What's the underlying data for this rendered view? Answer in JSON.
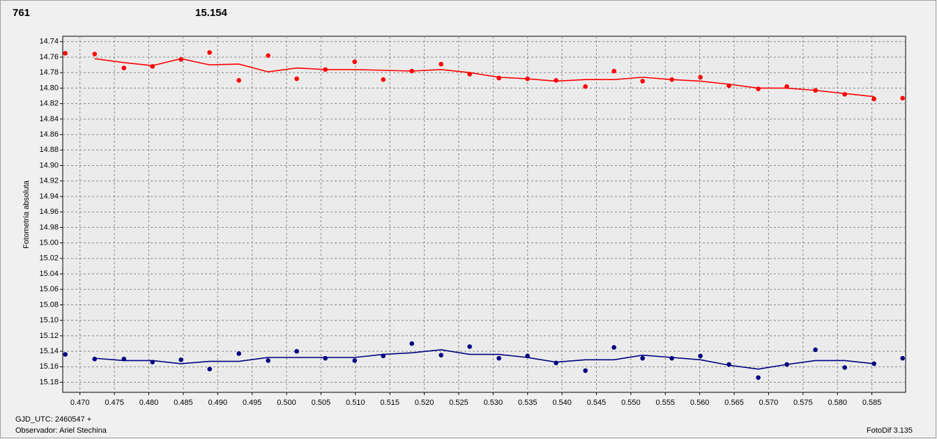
{
  "chart_data": {
    "type": "scatter",
    "header": [
      {
        "text": "761",
        "color": "#ff0000"
      },
      {
        "text": "15.154",
        "color": "#000080"
      }
    ],
    "ylabel": "Fotometría absoluta",
    "footer_left": [
      "GJD_UTC: 2460547 +",
      "Observador: Ariel Stechina"
    ],
    "footer_right": "FotoDif 3.135",
    "xlim": [
      0.4675,
      0.5899
    ],
    "ylim": [
      14.733,
      15.193
    ],
    "y_inverted": true,
    "grid": true,
    "xticks": [
      {
        "value": 0.47,
        "label": "0.470"
      },
      0.475,
      {
        "value": 0.48,
        "label": "0.480"
      },
      0.485,
      {
        "value": 0.49,
        "label": "0.490"
      },
      0.495,
      {
        "value": 0.5,
        "label": "0.500"
      },
      0.505,
      {
        "value": 0.51,
        "label": "0.510"
      },
      0.515,
      {
        "value": 0.52,
        "label": "0.520"
      },
      0.525,
      {
        "value": 0.53,
        "label": "0.530"
      },
      0.535,
      {
        "value": 0.54,
        "label": "0.540"
      },
      0.545,
      {
        "value": 0.55,
        "label": "0.550"
      },
      0.555,
      {
        "value": 0.56,
        "label": "0.560"
      },
      0.565,
      {
        "value": 0.57,
        "label": "0.570"
      },
      0.575,
      {
        "value": 0.58,
        "label": "0.580"
      },
      0.585
    ],
    "yticks": [
      14.74,
      14.76,
      14.78,
      {
        "value": 14.8,
        "label": "14.80"
      },
      14.82,
      14.84,
      14.86,
      14.88,
      {
        "value": 14.9,
        "label": "14.90"
      },
      14.92,
      14.94,
      14.96,
      14.98,
      {
        "value": 15.0,
        "label": "15.00"
      },
      15.02,
      15.04,
      15.06,
      15.08,
      {
        "value": 15.1,
        "label": "15.10"
      },
      15.12,
      15.14,
      15.16,
      15.18
    ],
    "series": [
      {
        "kind": "points",
        "color": "#ff0000",
        "x": [
          0.46787,
          0.47213,
          0.47638,
          0.48053,
          0.48468,
          0.48883,
          0.49308,
          0.49733,
          0.50148,
          0.50563,
          0.50989,
          0.51404,
          0.51819,
          0.52244,
          0.52659,
          0.53084,
          0.53499,
          0.53914,
          0.5434,
          0.54755,
          0.5517,
          0.55595,
          0.5601,
          0.56425,
          0.5685,
          0.57265,
          0.5768,
          0.58106,
          0.58531,
          0.58946
        ],
        "values": [
          14.755,
          14.756,
          14.774,
          14.772,
          14.763,
          14.754,
          14.79,
          14.758,
          14.788,
          14.776,
          14.766,
          14.789,
          14.778,
          14.769,
          14.782,
          14.787,
          14.788,
          14.79,
          14.798,
          14.778,
          14.791,
          14.789,
          14.786,
          14.797,
          14.801,
          14.798,
          14.803,
          14.808,
          14.814,
          14.813
        ]
      },
      {
        "kind": "line",
        "color": "#ff0000",
        "x": [
          0.47213,
          0.47638,
          0.48053,
          0.48468,
          0.48883,
          0.49308,
          0.49733,
          0.50148,
          0.50563,
          0.50989,
          0.51404,
          0.51819,
          0.52244,
          0.52659,
          0.53084,
          0.53499,
          0.53914,
          0.5434,
          0.54755,
          0.5517,
          0.55595,
          0.5601,
          0.56425,
          0.5685,
          0.57265,
          0.5768,
          0.58106,
          0.58531
        ],
        "values": [
          14.762,
          14.767,
          14.771,
          14.762,
          14.77,
          14.769,
          14.779,
          14.774,
          14.776,
          14.776,
          14.777,
          14.778,
          14.776,
          14.78,
          14.786,
          14.788,
          14.791,
          14.789,
          14.789,
          14.786,
          14.789,
          14.791,
          14.795,
          14.8,
          14.8,
          14.803,
          14.807,
          14.811
        ]
      },
      {
        "kind": "points",
        "color": "#000080",
        "x": [
          0.46787,
          0.47213,
          0.47638,
          0.48053,
          0.48468,
          0.48883,
          0.49308,
          0.49733,
          0.50148,
          0.50563,
          0.50989,
          0.51404,
          0.51819,
          0.52244,
          0.52659,
          0.53084,
          0.53499,
          0.53914,
          0.5434,
          0.54755,
          0.5517,
          0.55595,
          0.5601,
          0.56425,
          0.5685,
          0.57265,
          0.5768,
          0.58106,
          0.58531,
          0.58946
        ],
        "values": [
          15.144,
          15.15,
          15.15,
          15.154,
          15.151,
          15.163,
          15.143,
          15.152,
          15.14,
          15.149,
          15.152,
          15.146,
          15.13,
          15.145,
          15.134,
          15.149,
          15.146,
          15.155,
          15.165,
          15.135,
          15.149,
          15.149,
          15.146,
          15.157,
          15.174,
          15.157,
          15.138,
          15.161,
          15.156,
          15.149
        ]
      },
      {
        "kind": "line",
        "color": "#000080",
        "x": [
          0.47213,
          0.47638,
          0.48053,
          0.48468,
          0.48883,
          0.49308,
          0.49733,
          0.50148,
          0.50563,
          0.50989,
          0.51404,
          0.51819,
          0.52244,
          0.52659,
          0.53084,
          0.53499,
          0.53914,
          0.5434,
          0.54755,
          0.5517,
          0.55595,
          0.5601,
          0.56425,
          0.5685,
          0.57265,
          0.5768,
          0.58106,
          0.58531
        ],
        "values": [
          15.149,
          15.152,
          15.152,
          15.156,
          15.153,
          15.153,
          15.148,
          15.148,
          15.148,
          15.148,
          15.144,
          15.142,
          15.138,
          15.144,
          15.144,
          15.148,
          15.154,
          15.151,
          15.151,
          15.145,
          15.148,
          15.151,
          15.158,
          15.163,
          15.157,
          15.152,
          15.152,
          15.156
        ]
      }
    ]
  }
}
